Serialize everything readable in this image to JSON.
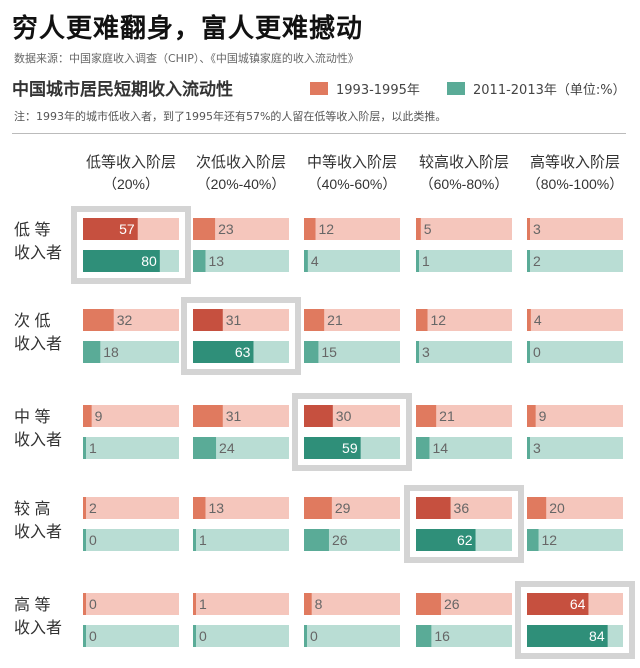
{
  "title": "穷人更难翻身，富人更难撼动",
  "source": "数据来源：中国家庭收入调查（CHIP）、《中国城镇家庭的收入流动性》",
  "subtitle": "中国城市居民短期收入流动性",
  "legend": {
    "series1": "1993-1995年",
    "series2": "2011-2013年（单位:%）"
  },
  "note": "注：1993年的城市低收入者，到了1995年还有57%的人留在低等收入阶层，以此类推。",
  "colors": {
    "series1_bar": "#e07a5f",
    "series1_track": "#f5c6bc",
    "series1_highlight": "#c6503f",
    "series2_bar": "#5aab97",
    "series2_track": "#b9ddd4",
    "series2_highlight": "#2f8f79",
    "highlight_box": "#d4d4d4"
  },
  "chart_data": {
    "type": "bar",
    "columns": [
      {
        "line1": "低等收入阶层",
        "line2": "（20%）"
      },
      {
        "line1": "次低收入阶层",
        "line2": "（20%-40%）"
      },
      {
        "line1": "中等收入阶层",
        "line2": "（40%-60%）"
      },
      {
        "line1": "较高收入阶层",
        "line2": "（60%-80%）"
      },
      {
        "line1": "高等收入阶层",
        "line2": "（80%-100%）"
      }
    ],
    "rows": [
      {
        "line1": "低 等",
        "line2": "收入者"
      },
      {
        "line1": "次 低",
        "line2": "收入者"
      },
      {
        "line1": "中 等",
        "line2": "收入者"
      },
      {
        "line1": "较 高",
        "line2": "收入者"
      },
      {
        "line1": "高 等",
        "line2": "收入者"
      }
    ],
    "series": [
      {
        "name": "1993-1995年",
        "values": [
          [
            57,
            23,
            12,
            5,
            3
          ],
          [
            32,
            31,
            21,
            12,
            4
          ],
          [
            9,
            31,
            30,
            21,
            9
          ],
          [
            2,
            13,
            29,
            36,
            20
          ],
          [
            0,
            1,
            8,
            26,
            64
          ]
        ]
      },
      {
        "name": "2011-2013年",
        "values": [
          [
            80,
            13,
            4,
            1,
            2
          ],
          [
            18,
            63,
            15,
            3,
            0
          ],
          [
            1,
            24,
            59,
            14,
            3
          ],
          [
            0,
            1,
            26,
            62,
            12
          ],
          [
            0,
            0,
            0,
            16,
            84
          ]
        ]
      }
    ],
    "unit": "%",
    "xlim": [
      0,
      100
    ]
  }
}
